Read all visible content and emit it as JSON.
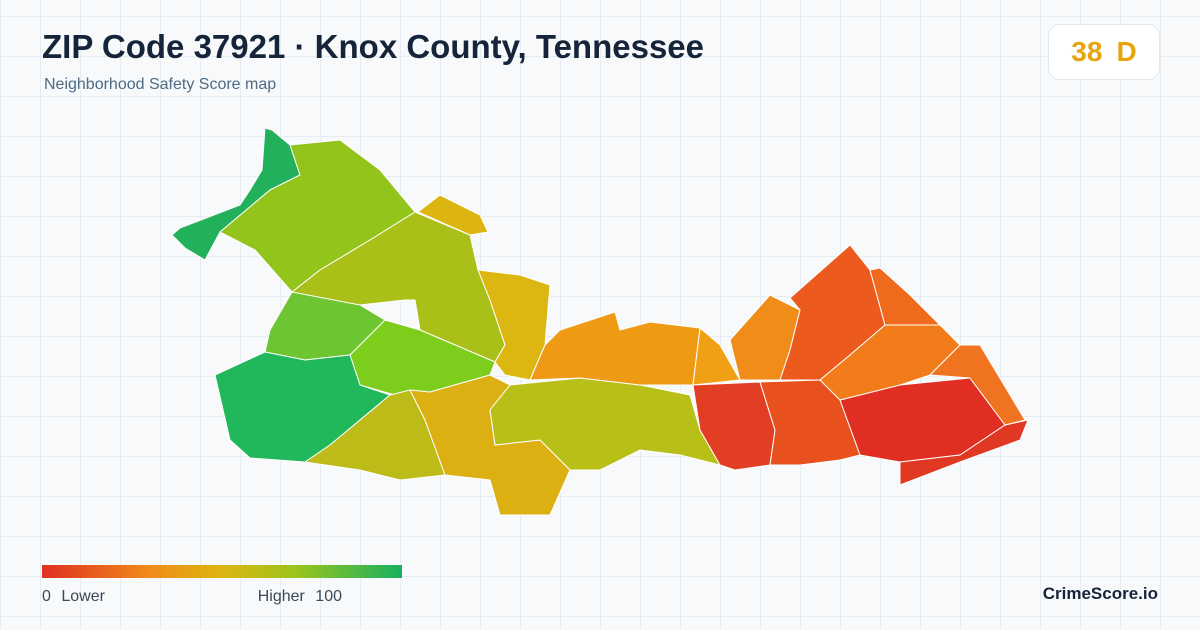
{
  "header": {
    "title": "ZIP Code 37921 · Knox County, Tennessee",
    "subtitle": "Neighborhood Safety Score map"
  },
  "badge": {
    "score": 38,
    "grade": "D"
  },
  "legend": {
    "min": 0,
    "min_label": "Lower",
    "max_label": "Higher",
    "max": 100
  },
  "footer": {
    "brand": "CrimeScore.io"
  }
}
